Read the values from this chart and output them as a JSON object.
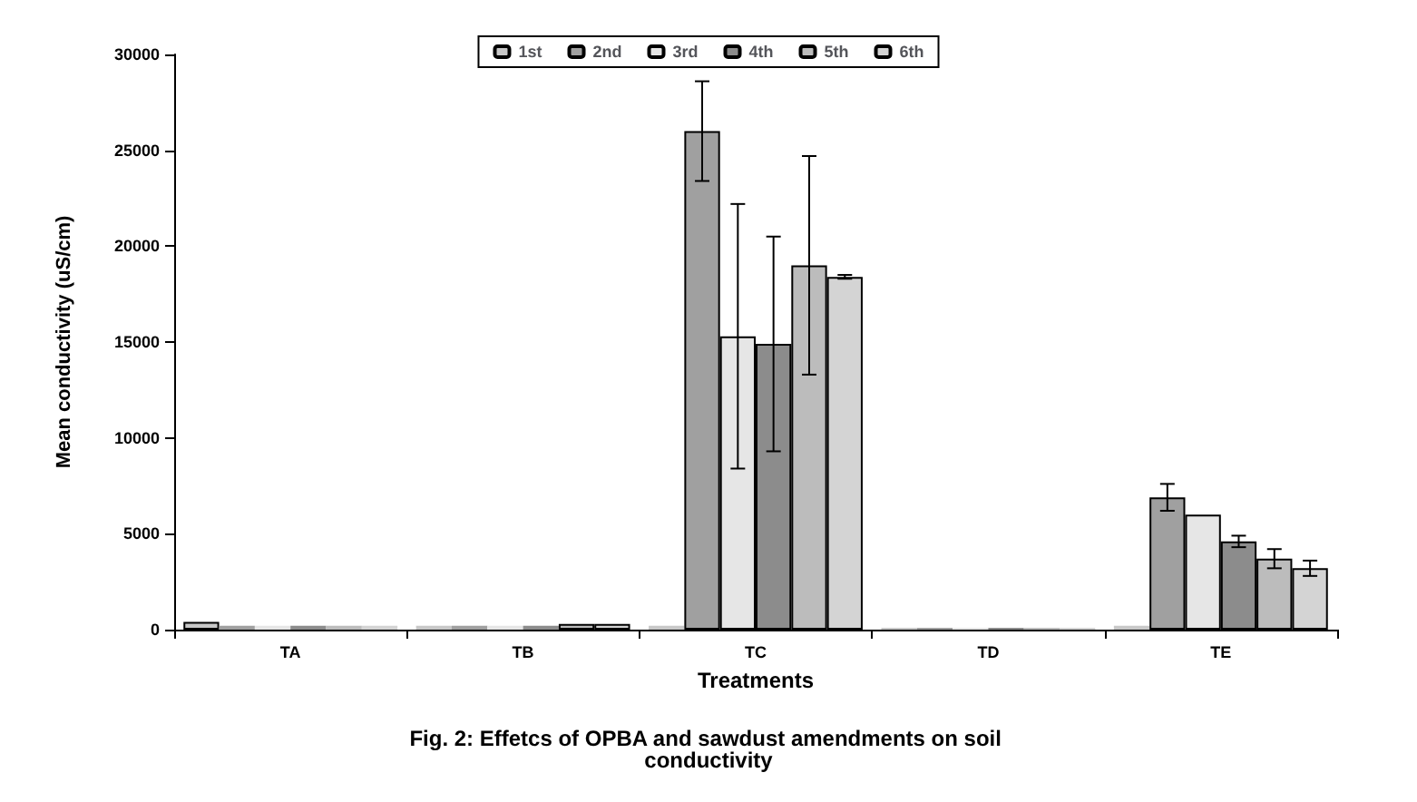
{
  "chart_data": {
    "type": "bar",
    "title": "Fig. 2: Effetcs of OPBA and sawdust amendments on soil conductivity",
    "xlabel": "Treatments",
    "ylabel": "Mean conductivity (uS/cm)",
    "categories": [
      "TA",
      "TB",
      "TC",
      "TD",
      "TE"
    ],
    "series": [
      {
        "name": "1st",
        "color": "#c8c8c8",
        "values": [
          400,
          200,
          200,
          100,
          200
        ],
        "errors": [
          null,
          null,
          null,
          null,
          null
        ]
      },
      {
        "name": "2nd",
        "color": "#a0a0a0",
        "values": [
          200,
          200,
          26000,
          100,
          6900
        ],
        "errors": [
          null,
          null,
          2600,
          null,
          700
        ]
      },
      {
        "name": "3rd",
        "color": "#e6e6e6",
        "values": [
          200,
          200,
          15300,
          100,
          6000
        ],
        "errors": [
          null,
          null,
          6900,
          null,
          null
        ]
      },
      {
        "name": "4th",
        "color": "#8c8c8c",
        "values": [
          200,
          200,
          14900,
          100,
          4600
        ],
        "errors": [
          null,
          null,
          5600,
          null,
          300
        ]
      },
      {
        "name": "5th",
        "color": "#bcbcbc",
        "values": [
          200,
          300,
          19000,
          100,
          3700
        ],
        "errors": [
          null,
          null,
          5700,
          null,
          500
        ]
      },
      {
        "name": "6th",
        "color": "#d4d4d4",
        "values": [
          200,
          300,
          18400,
          100,
          3200
        ],
        "errors": [
          null,
          null,
          100,
          null,
          400
        ]
      }
    ],
    "ylim": [
      0,
      30000
    ],
    "yticks": [
      0,
      5000,
      10000,
      15000,
      20000,
      25000,
      30000
    ],
    "grid": false,
    "legend": "top"
  }
}
